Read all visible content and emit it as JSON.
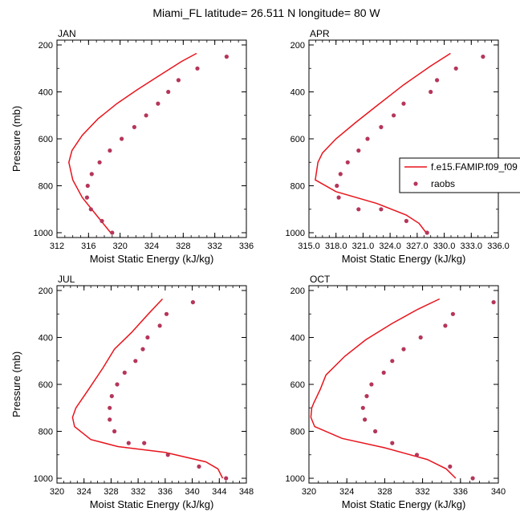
{
  "figure": {
    "title": "Miami_FL  latitude= 26.511 N longitude= 80 W"
  },
  "legend": {
    "model_label": "f.e15.FAMIP.f09_f09",
    "obs_label": "raobs",
    "model_color": "#e8141c",
    "obs_color": "#b5365a"
  },
  "chart_data": [
    {
      "type": "line",
      "title": "JAN",
      "xlabel": "Moist Static Energy (kJ/kg)",
      "ylabel": "Pressure (mb)",
      "xlim": [
        312,
        336
      ],
      "ylim": [
        1000,
        200
      ],
      "xticks": [
        "312",
        "316",
        "320",
        "324",
        "328",
        "332",
        "336"
      ],
      "yticks": [
        "200",
        "400",
        "600",
        "800",
        "1000"
      ],
      "xtick_values": [
        312,
        316,
        320,
        324,
        328,
        332,
        336
      ],
      "series": [
        {
          "x": [
            329.7,
            327.8,
            325.0,
            322.2,
            319.6,
            317.2,
            315.2,
            313.9,
            313.5,
            314.0,
            315.2,
            317.0,
            318.8
          ],
          "y": [
            236,
            270,
            330,
            390,
            450,
            515,
            585,
            650,
            700,
            775,
            850,
            925,
            1000
          ]
        },
        {
          "x": [
            333.5,
            329.8,
            327.4,
            326.1,
            324.8,
            323.3,
            321.8,
            320.2,
            318.7,
            317.4,
            316.4,
            315.9,
            315.8,
            316.3,
            317.7,
            319.0
          ],
          "y": [
            250,
            300,
            350,
            400,
            450,
            500,
            550,
            600,
            650,
            700,
            750,
            800,
            850,
            900,
            950,
            1000
          ]
        }
      ]
    },
    {
      "type": "line",
      "title": "APR",
      "xlabel": "Moist Static Energy (kJ/kg)",
      "ylabel": "",
      "xlim": [
        315,
        336
      ],
      "ylim": [
        1000,
        200
      ],
      "xticks": [
        "315.0",
        "318.0",
        "321.0",
        "324.0",
        "327.0",
        "330.0",
        "333.0",
        "336.0"
      ],
      "yticks": [
        "200",
        "400",
        "600",
        "800",
        "1000"
      ],
      "xtick_values": [
        315,
        318,
        321,
        324,
        327,
        330,
        333,
        336
      ],
      "series": [
        {
          "x": [
            330.7,
            328.5,
            325.5,
            322.5,
            320.2,
            318.0,
            316.5,
            316.0,
            315.7,
            318.0,
            322.5,
            325.8,
            327.2,
            328.0
          ],
          "y": [
            236,
            290,
            370,
            460,
            530,
            600,
            660,
            700,
            775,
            825,
            875,
            925,
            960,
            1000
          ]
        },
        {
          "x": [
            334.3,
            331.3,
            329.2,
            328.5,
            325.5,
            324.4,
            323.0,
            321.5,
            320.5,
            319.3,
            318.5,
            318.1,
            318.3,
            320.5,
            323.0,
            325.8,
            328.1
          ],
          "y": [
            250,
            300,
            350,
            400,
            450,
            500,
            550,
            600,
            650,
            700,
            750,
            800,
            850,
            900,
            900,
            950,
            1000
          ]
        }
      ]
    },
    {
      "type": "line",
      "title": "JUL",
      "xlabel": "Moist Static Energy (kJ/kg)",
      "ylabel": "Pressure (mb)",
      "xlim": [
        320,
        348
      ],
      "ylim": [
        1000,
        200
      ],
      "xticks": [
        "320",
        "324",
        "328",
        "332",
        "336",
        "340",
        "344",
        "348"
      ],
      "yticks": [
        "200",
        "400",
        "600",
        "800",
        "1000"
      ],
      "xtick_values": [
        320,
        324,
        328,
        332,
        336,
        340,
        344,
        348
      ],
      "series": [
        {
          "x": [
            335.6,
            333.5,
            331.0,
            328.5,
            326.8,
            324.7,
            322.8,
            322.3,
            322.6,
            325.0,
            329.0,
            336.0,
            342.0,
            343.8,
            344.5
          ],
          "y": [
            236,
            300,
            380,
            450,
            530,
            620,
            700,
            740,
            780,
            835,
            865,
            890,
            930,
            960,
            1000
          ]
        },
        {
          "x": [
            340.1,
            336.2,
            335.2,
            333.4,
            332.7,
            331.6,
            330.0,
            328.9,
            328.1,
            327.8,
            327.8,
            328.5,
            330.6,
            332.9,
            336.4,
            341.0,
            345.0
          ],
          "y": [
            250,
            300,
            350,
            400,
            450,
            500,
            550,
            600,
            650,
            700,
            750,
            800,
            850,
            850,
            900,
            950,
            1000
          ]
        }
      ]
    },
    {
      "type": "line",
      "title": "OCT",
      "xlabel": "Moist Static Energy (kJ/kg)",
      "ylabel": "",
      "xlim": [
        320,
        340
      ],
      "ylim": [
        1000,
        200
      ],
      "xticks": [
        "320",
        "324",
        "328",
        "332",
        "336",
        "340"
      ],
      "yticks": [
        "200",
        "400",
        "600",
        "800",
        "1000"
      ],
      "xtick_values": [
        320,
        324,
        328,
        332,
        336,
        340
      ],
      "series": [
        {
          "x": [
            333.8,
            331.5,
            328.8,
            326.0,
            323.8,
            321.8,
            321.2,
            320.5,
            320.3,
            320.2,
            320.6,
            323.5,
            328.0,
            332.5,
            334.5,
            335.5
          ],
          "y": [
            236,
            280,
            340,
            410,
            480,
            560,
            620,
            680,
            700,
            740,
            780,
            830,
            870,
            920,
            960,
            1000
          ]
        },
        {
          "x": [
            339.5,
            335.2,
            334.4,
            331.8,
            330.0,
            328.8,
            327.9,
            326.6,
            326.1,
            325.7,
            325.9,
            327.0,
            328.8,
            331.4,
            334.9,
            337.3
          ],
          "y": [
            250,
            300,
            350,
            400,
            450,
            500,
            550,
            600,
            650,
            700,
            750,
            800,
            850,
            900,
            950,
            1000
          ]
        }
      ]
    }
  ]
}
